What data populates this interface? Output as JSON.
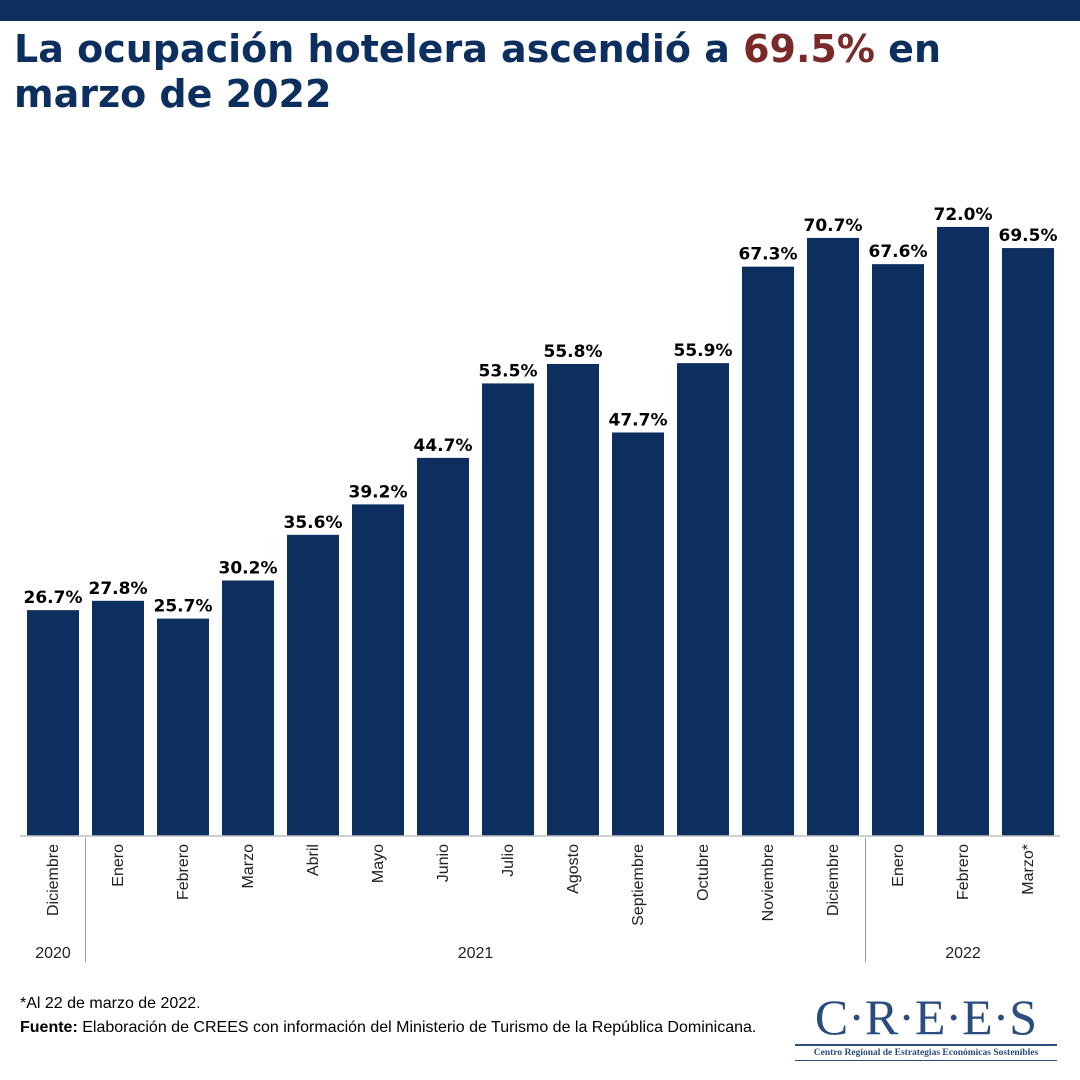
{
  "title": {
    "before": "La ocupación hotelera ascendió a ",
    "highlight": "69.5%",
    "after": " en marzo de 2022"
  },
  "colors": {
    "bar": "#0d2f5f",
    "highlight": "#7b2a2a",
    "title": "#0d2f5f"
  },
  "chart_data": {
    "type": "bar",
    "categories": [
      "Diciembre",
      "Enero",
      "Febrero",
      "Marzo",
      "Abril",
      "Mayo",
      "Junio",
      "Julio",
      "Agosto",
      "Septiembre",
      "Octubre",
      "Noviembre",
      "Diciembre",
      "Enero",
      "Febrero",
      "Marzo*"
    ],
    "values": [
      26.7,
      27.8,
      25.7,
      30.2,
      35.6,
      39.2,
      44.7,
      53.5,
      55.8,
      47.7,
      55.9,
      67.3,
      70.7,
      67.6,
      72.0,
      69.5
    ],
    "value_labels": [
      "26.7%",
      "27.8%",
      "25.7%",
      "30.2%",
      "35.6%",
      "39.2%",
      "44.7%",
      "53.5%",
      "55.8%",
      "47.7%",
      "55.9%",
      "67.3%",
      "70.7%",
      "67.6%",
      "72.0%",
      "69.5%"
    ],
    "year_groups": [
      {
        "label": "2020",
        "start": 0,
        "end": 0
      },
      {
        "label": "2021",
        "start": 1,
        "end": 12
      },
      {
        "label": "2022",
        "start": 13,
        "end": 15
      }
    ],
    "ylim": [
      0,
      74
    ],
    "grid": false,
    "legend": "none"
  },
  "footnote": {
    "note": "*Al 22 de marzo de 2022.",
    "source_label": "Fuente:",
    "source_text": " Elaboración de CREES con información del Ministerio de Turismo de la República Dominicana."
  },
  "logo": {
    "main": "C·R·E·E·S",
    "subtitle": "Centro Regional de Estrategias Económicas Sostenibles"
  }
}
